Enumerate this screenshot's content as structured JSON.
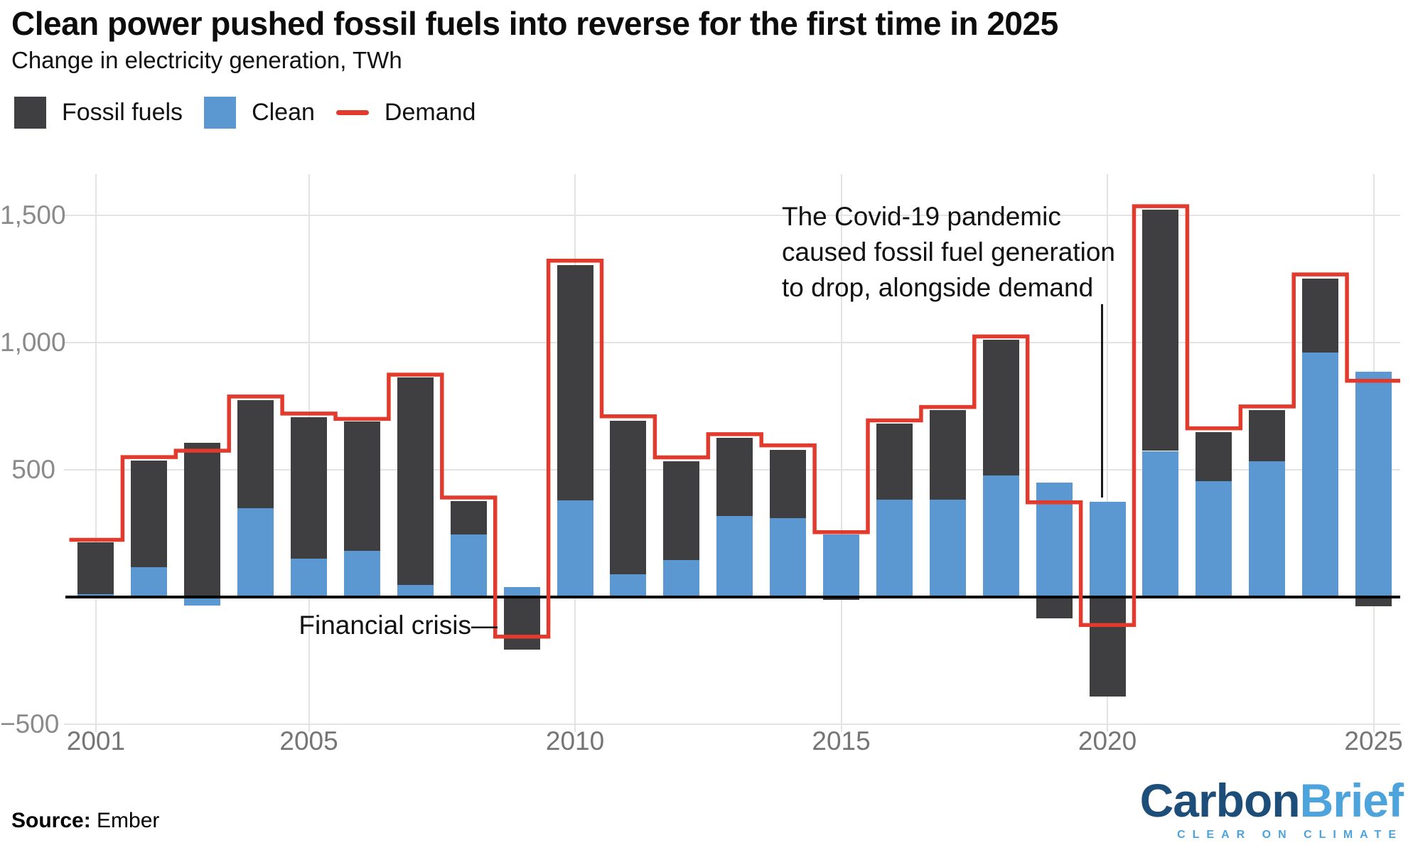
{
  "header": {
    "title": "Clean power pushed fossil fuels into reverse for the first time in 2025",
    "subtitle": "Change in electricity generation, TWh"
  },
  "legend": {
    "fossil_label": "Fossil fuels",
    "clean_label": "Clean",
    "demand_label": "Demand"
  },
  "colors": {
    "fossil": "#3f3f41",
    "clean": "#5b98d1",
    "demand": "#e23b2e",
    "grid": "#e3e3e3",
    "tick_text": "#8a8a8a",
    "axis": "#000000",
    "logo_dark_blue": "#1d4e7a",
    "logo_light_blue": "#4da3dc"
  },
  "chart_data": {
    "type": "bar",
    "stacked": true,
    "title": "Clean power pushed fossil fuels into reverse for the first time in 2025",
    "subtitle": "Change in electricity generation, TWh",
    "ylabel": "TWh",
    "ylim": [
      -500,
      1560
    ],
    "yticks": [
      1500,
      1000,
      500,
      -500
    ],
    "ytick_labels": [
      "1,500",
      "1,000",
      "500",
      "−500"
    ],
    "xticks": [
      2001,
      2005,
      2010,
      2015,
      2020,
      2025
    ],
    "grid": true,
    "legend_position": "top-left",
    "categories": [
      2001,
      2002,
      2003,
      2004,
      2005,
      2006,
      2007,
      2008,
      2009,
      2010,
      2011,
      2012,
      2013,
      2014,
      2015,
      2016,
      2017,
      2018,
      2019,
      2020,
      2021,
      2022,
      2023,
      2024,
      2025
    ],
    "series": [
      {
        "name": "Clean",
        "color": "#5b98d1",
        "values": [
          10,
          117,
          -34,
          349,
          151,
          182,
          47,
          246,
          40,
          379,
          88,
          144,
          319,
          309,
          245,
          383,
          382,
          479,
          450,
          375,
          574,
          456,
          533,
          961,
          885
        ]
      },
      {
        "name": "Fossil fuels",
        "color": "#3f3f41",
        "values": [
          205,
          419,
          606,
          425,
          556,
          508,
          816,
          131,
          -207,
          926,
          605,
          389,
          307,
          270,
          -10,
          299,
          352,
          531,
          -85,
          -390,
          948,
          191,
          201,
          291,
          -37
        ]
      }
    ],
    "demand_line": {
      "name": "Demand",
      "color": "#e23b2e",
      "values": [
        225,
        550,
        575,
        788,
        721,
        700,
        874,
        391,
        -156,
        1322,
        710,
        549,
        640,
        596,
        255,
        694,
        747,
        1024,
        372,
        -110,
        1536,
        663,
        749,
        1268,
        850
      ]
    }
  },
  "annotations": {
    "financial_crisis": "Financial crisis—",
    "covid_line1": "The Covid-19 pandemic",
    "covid_line2": "caused fossil fuel generation",
    "covid_line3": "to drop, alongside demand"
  },
  "footer": {
    "source_label": "Source:",
    "source_value": " Ember",
    "logo_part1": "Carbon",
    "logo_part2": "Brief",
    "logo_tagline": "CLEAR ON CLIMATE"
  }
}
